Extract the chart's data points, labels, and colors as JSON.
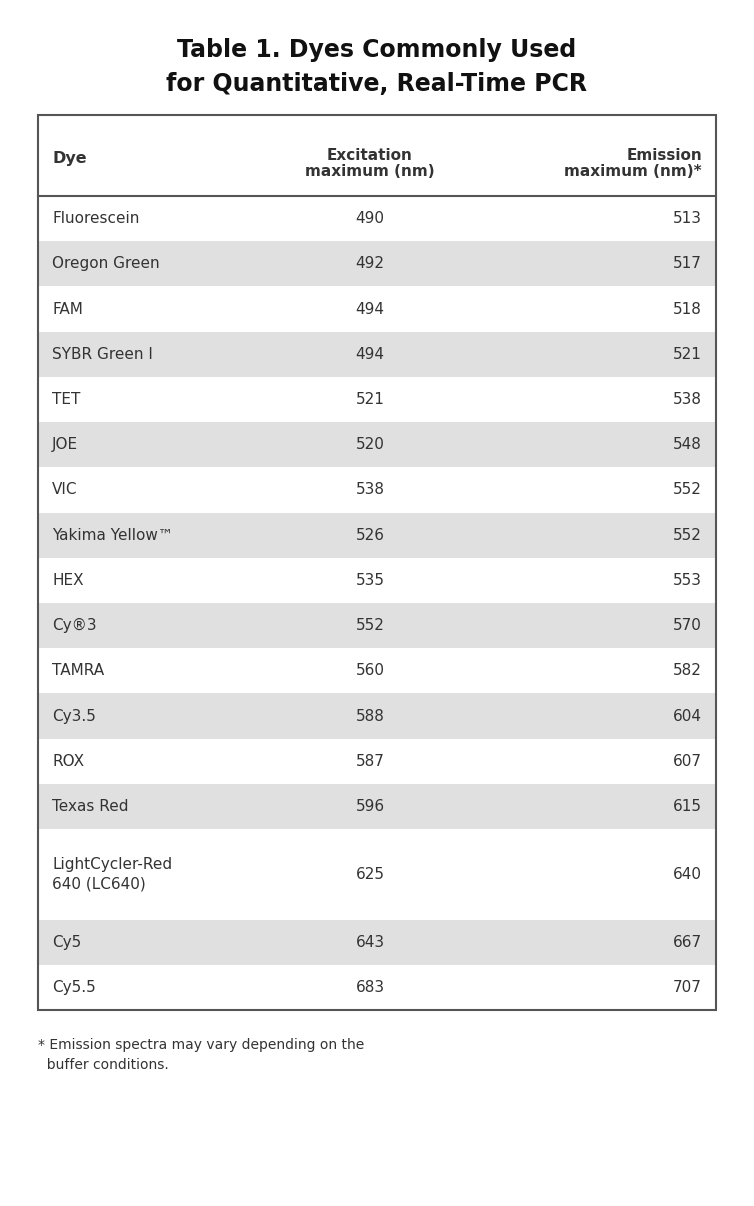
{
  "title_line1": "Table 1. Dyes Commonly Used",
  "title_line2": "for Quantitative, Real-Time PCR",
  "rows": [
    [
      "Fluorescein",
      "490",
      "513"
    ],
    [
      "Oregon Green",
      "492",
      "517"
    ],
    [
      "FAM",
      "494",
      "518"
    ],
    [
      "SYBR Green I",
      "494",
      "521"
    ],
    [
      "TET",
      "521",
      "538"
    ],
    [
      "JOE",
      "520",
      "548"
    ],
    [
      "VIC",
      "538",
      "552"
    ],
    [
      "Yakima Yellow™",
      "526",
      "552"
    ],
    [
      "HEX",
      "535",
      "553"
    ],
    [
      "Cy®3",
      "552",
      "570"
    ],
    [
      "TAMRA",
      "560",
      "582"
    ],
    [
      "Cy3.5",
      "588",
      "604"
    ],
    [
      "ROX",
      "587",
      "607"
    ],
    [
      "Texas Red",
      "596",
      "615"
    ],
    [
      "LightCycler-Red\n640 (LC640)",
      "625",
      "640"
    ],
    [
      "Cy5",
      "643",
      "667"
    ],
    [
      "Cy5.5",
      "683",
      "707"
    ]
  ],
  "shaded_rows": [
    1,
    3,
    5,
    7,
    9,
    11,
    13,
    15
  ],
  "footnote_line1": "* Emission spectra may vary depending on the",
  "footnote_line2": "  buffer conditions.",
  "bg_color": "#ffffff",
  "row_bg_light": "#ffffff",
  "row_bg_shade": "#e0e0e0",
  "border_color": "#555555",
  "text_color": "#333333",
  "title_color": "#111111",
  "header_sep_color": "#555555"
}
